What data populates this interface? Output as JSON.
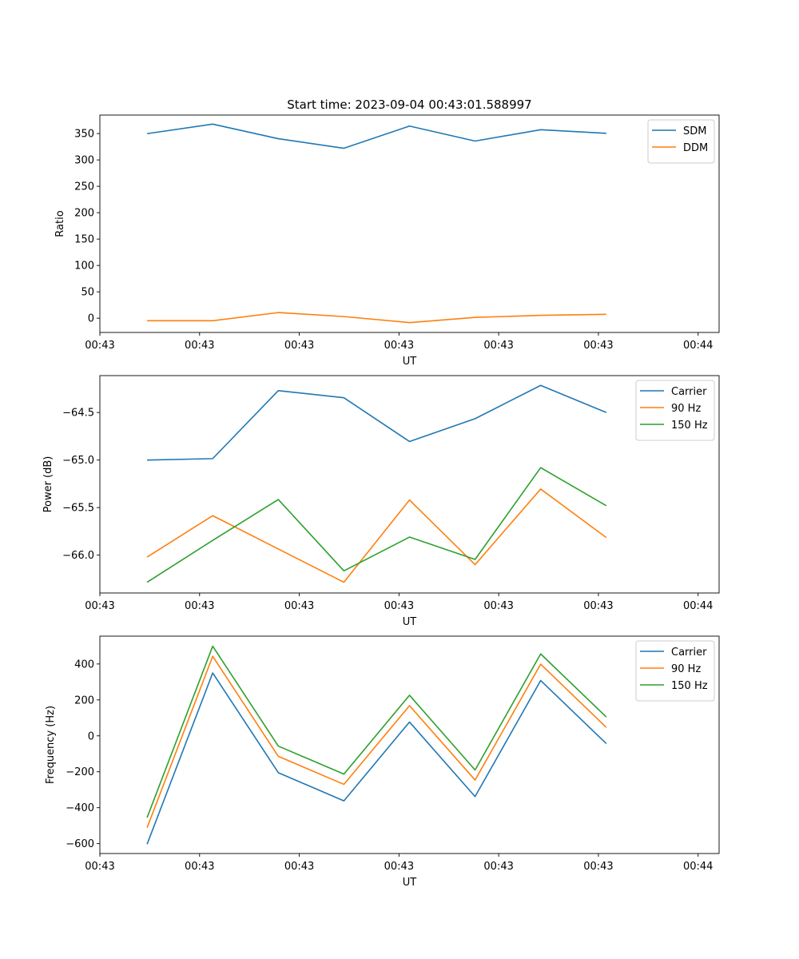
{
  "chart_data": [
    {
      "type": "line",
      "title": "Start time: 2023-09-04 00:43:01.588997",
      "xlabel": "UT",
      "ylabel": "Ratio",
      "x": [
        0,
        1,
        2,
        3,
        4,
        5,
        6,
        7
      ],
      "xlim": [
        -0.72,
        8.72
      ],
      "x_ticks": [
        -0.72,
        0.8,
        2.32,
        3.84,
        5.36,
        6.88,
        8.4
      ],
      "x_tick_labels": [
        "00:43",
        "00:43",
        "00:43",
        "00:43",
        "00:43",
        "00:43",
        "00:44"
      ],
      "ylim": [
        -27,
        385
      ],
      "y_ticks": [
        0,
        50,
        100,
        150,
        200,
        250,
        300,
        350
      ],
      "y_tick_labels": [
        "0",
        "50",
        "100",
        "150",
        "200",
        "250",
        "300",
        "350"
      ],
      "legend_position": "top-right",
      "series": [
        {
          "name": "SDM",
          "color": "#1f77b4",
          "values": [
            349.8,
            367.9,
            340.2,
            322.1,
            364.2,
            335.8,
            357.2,
            350.5
          ]
        },
        {
          "name": "DDM",
          "color": "#ff7f0e",
          "values": [
            -4.7,
            -4.7,
            10.7,
            3.1,
            -8.3,
            1.5,
            5.4,
            7.4
          ]
        }
      ]
    },
    {
      "type": "line",
      "title": "",
      "xlabel": "UT",
      "ylabel": "Power (dB)",
      "x": [
        0,
        1,
        2,
        3,
        4,
        5,
        6,
        7
      ],
      "xlim": [
        -0.72,
        8.72
      ],
      "x_ticks": [
        -0.72,
        0.8,
        2.32,
        3.84,
        5.36,
        6.88,
        8.4
      ],
      "x_tick_labels": [
        "00:43",
        "00:43",
        "00:43",
        "00:43",
        "00:43",
        "00:43",
        "00:44"
      ],
      "ylim": [
        -66.398,
        -64.112
      ],
      "y_ticks": [
        -66.0,
        -65.5,
        -65.0,
        -64.5
      ],
      "y_tick_labels": [
        "−66.0",
        "−65.5",
        "−65.0",
        "−64.5"
      ],
      "legend_position": "top-right",
      "series": [
        {
          "name": "Carrier",
          "color": "#1f77b4",
          "values": [
            -65.0,
            -64.985,
            -64.27,
            -64.345,
            -64.805,
            -64.565,
            -64.215,
            -64.5
          ]
        },
        {
          "name": "90 Hz",
          "color": "#ff7f0e",
          "values": [
            -66.02,
            -65.585,
            -65.935,
            -66.285,
            -65.42,
            -66.1,
            -65.305,
            -65.815
          ]
        },
        {
          "name": "150 Hz",
          "color": "#2ca02c",
          "values": [
            -66.285,
            -65.845,
            -65.415,
            -66.165,
            -65.81,
            -66.045,
            -65.08,
            -65.48
          ]
        }
      ]
    },
    {
      "type": "line",
      "title": "",
      "xlabel": "UT",
      "ylabel": "Frequency (Hz)",
      "x": [
        0,
        1,
        2,
        3,
        4,
        5,
        6,
        7
      ],
      "xlim": [
        -0.72,
        8.72
      ],
      "x_ticks": [
        -0.72,
        0.8,
        2.32,
        3.84,
        5.36,
        6.88,
        8.4
      ],
      "x_tick_labels": [
        "00:43",
        "00:43",
        "00:43",
        "00:43",
        "00:43",
        "00:43",
        "00:44"
      ],
      "ylim": [
        -655,
        555
      ],
      "y_ticks": [
        -600,
        -400,
        -200,
        0,
        200,
        400
      ],
      "y_tick_labels": [
        "−600",
        "−400",
        "−200",
        "0",
        "200",
        "400"
      ],
      "legend_position": "top-right",
      "series": [
        {
          "name": "Carrier",
          "color": "#1f77b4",
          "values": [
            -603,
            350,
            -205,
            -362,
            77,
            -338,
            308,
            -43
          ]
        },
        {
          "name": "90 Hz",
          "color": "#ff7f0e",
          "values": [
            -511,
            443,
            -114,
            -270,
            168,
            -246,
            399,
            47
          ]
        },
        {
          "name": "150 Hz",
          "color": "#2ca02c",
          "values": [
            -455,
            499,
            -57,
            -213,
            226,
            -190,
            456,
            105
          ]
        }
      ]
    }
  ]
}
